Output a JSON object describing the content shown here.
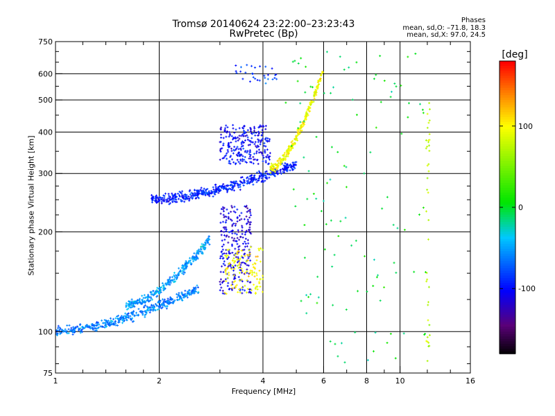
{
  "header": {
    "title_line1": "Tromsø 20140624 23:22:00–23:23:43",
    "title_line2": "RwPretec (Bp)"
  },
  "phase_info": {
    "heading": "Phases",
    "line_o": "mean, sd,O: –71.8, 18.3",
    "line_x": "mean, sd,X: 97.0, 24.5"
  },
  "colorbar": {
    "unit_label": "[deg]",
    "range": [
      -180,
      180
    ],
    "ticks": [
      {
        "value": 100,
        "label": "100"
      },
      {
        "value": 0,
        "label": "0"
      },
      {
        "value": -100,
        "label": "-100"
      }
    ]
  },
  "chart_data": {
    "type": "scatter",
    "title": "Tromsø 20140624 23:22:00–23:23:43",
    "subtitle": "RwPretec (Bp)",
    "xlabel": "Frequency [MHz]",
    "ylabel": "Stationary phase Virtual Height [km]",
    "x_scale": "log",
    "y_scale": "log",
    "xlim": [
      1,
      16
    ],
    "ylim": [
      75,
      750
    ],
    "x_ticks": [
      1,
      2,
      4,
      6,
      8,
      10,
      16
    ],
    "y_ticks": [
      75,
      100,
      200,
      300,
      400,
      500,
      600,
      750
    ],
    "x_grid": [
      2,
      4,
      6,
      8,
      10
    ],
    "y_grid": [
      100,
      200,
      300,
      400,
      500,
      600
    ],
    "color_variable": "phase [deg]",
    "clusters": [
      {
        "desc": "E/F1 lower trace O-mode",
        "x": [
          1.0,
          2.6
        ],
        "y": [
          100,
          135
        ],
        "phase_mean": -60,
        "count": 420
      },
      {
        "desc": "lower trace upper fringe",
        "x": [
          1.6,
          2.8
        ],
        "y": [
          120,
          190
        ],
        "phase_mean": -50,
        "count": 300
      },
      {
        "desc": "F2 O-mode trace",
        "x": [
          1.9,
          5.0
        ],
        "y": [
          250,
          320
        ],
        "phase_mean": -90,
        "count": 500
      },
      {
        "desc": "F2 upper cusp",
        "x": [
          3.0,
          4.2
        ],
        "y": [
          320,
          420
        ],
        "phase_mean": -100,
        "count": 250
      },
      {
        "desc": "X-mode trace",
        "x": [
          4.2,
          6.0
        ],
        "y": [
          310,
          620
        ],
        "phase_mean": 97,
        "count": 260
      },
      {
        "desc": "mid-height O-mode blob",
        "x": [
          3.0,
          3.7
        ],
        "y": [
          130,
          240
        ],
        "phase_mean": -110,
        "count": 260
      },
      {
        "desc": "mid-height X-mode blob",
        "x": [
          3.1,
          4.0
        ],
        "y": [
          130,
          180
        ],
        "phase_mean": 100,
        "count": 120
      },
      {
        "desc": "spread echoes top",
        "x": [
          3.2,
          4.4
        ],
        "y": [
          560,
          640
        ],
        "phase_mean": -80,
        "count": 30
      },
      {
        "desc": "noise vertical 12 MHz",
        "x": [
          11.9,
          12.2
        ],
        "y": [
          80,
          520
        ],
        "phase_mean": 80,
        "count": 40
      },
      {
        "desc": "scattered noise",
        "x": [
          4.5,
          12.0
        ],
        "y": [
          80,
          700
        ],
        "phase_mean": 0,
        "count": 120
      }
    ]
  }
}
